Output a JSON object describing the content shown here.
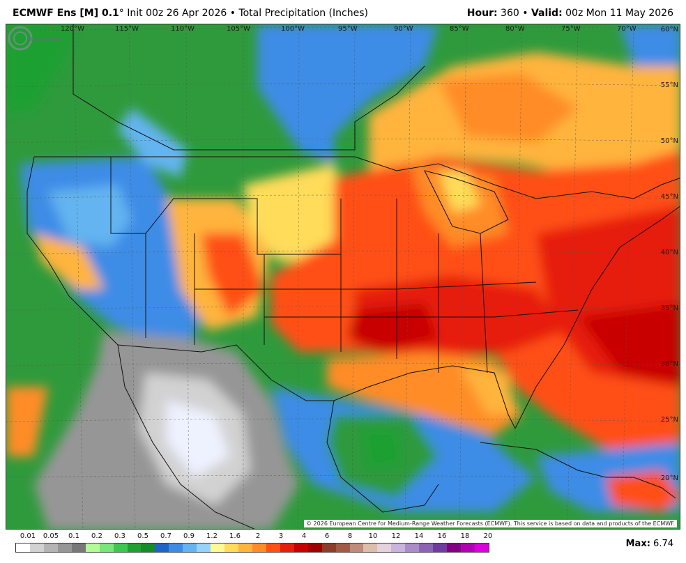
{
  "header": {
    "model": "ECMWF Ens [M] 0.1",
    "degree": "°",
    "init_text": "Init 00z 26 Apr 2026",
    "separator": "•",
    "field": "Total Precipitation (Inches)",
    "hour_label": "Hour:",
    "hour_value": "360",
    "valid_label": "Valid:",
    "valid_value": "00z Mon 11 May 2026"
  },
  "map": {
    "longitude_labels": [
      "120°W",
      "115°W",
      "110°W",
      "105°W",
      "100°W",
      "95°W",
      "90°W",
      "85°W",
      "80°W",
      "75°W",
      "70°W"
    ],
    "latitude_labels": [
      "60°N",
      "55°N",
      "50°N",
      "45°N",
      "40°N",
      "35°N",
      "30°N",
      "25°N",
      "20°N"
    ],
    "logo_text": "WeatherBELL",
    "copyright": "© 2026 European Centre for Medium-Range Weather Forecasts (ECMWF). This service is based on data and products of the ECMWF."
  },
  "legend": {
    "labels": [
      "0.01",
      "0.05",
      "0.1",
      "0.2",
      "0.3",
      "0.5",
      "0.7",
      "0.9",
      "1.2",
      "1.6",
      "2",
      "3",
      "4",
      "6",
      "8",
      "10",
      "12",
      "14",
      "16",
      "18",
      "20"
    ],
    "colors": [
      "#ffffff",
      "#d2d2d2",
      "#b4b4b4",
      "#969696",
      "#787878",
      "#b4fa96",
      "#78e678",
      "#3cc850",
      "#1ea032",
      "#148c28",
      "#1e64c8",
      "#3c8ce6",
      "#64b4f0",
      "#96d2fa",
      "#fffa96",
      "#ffdc5a",
      "#ffb43c",
      "#ff8c28",
      "#ff5014",
      "#e61e0a",
      "#c80000",
      "#a00000",
      "#8c3c28",
      "#a05a46",
      "#be8c78",
      "#dcbeaa",
      "#e6d2dc",
      "#c8b4dc",
      "#aa8cc8",
      "#8c64b4",
      "#6e3ca0",
      "#820082",
      "#b400b4",
      "#dc00dc"
    ],
    "max_label": "Max:",
    "max_value": "6.74"
  }
}
